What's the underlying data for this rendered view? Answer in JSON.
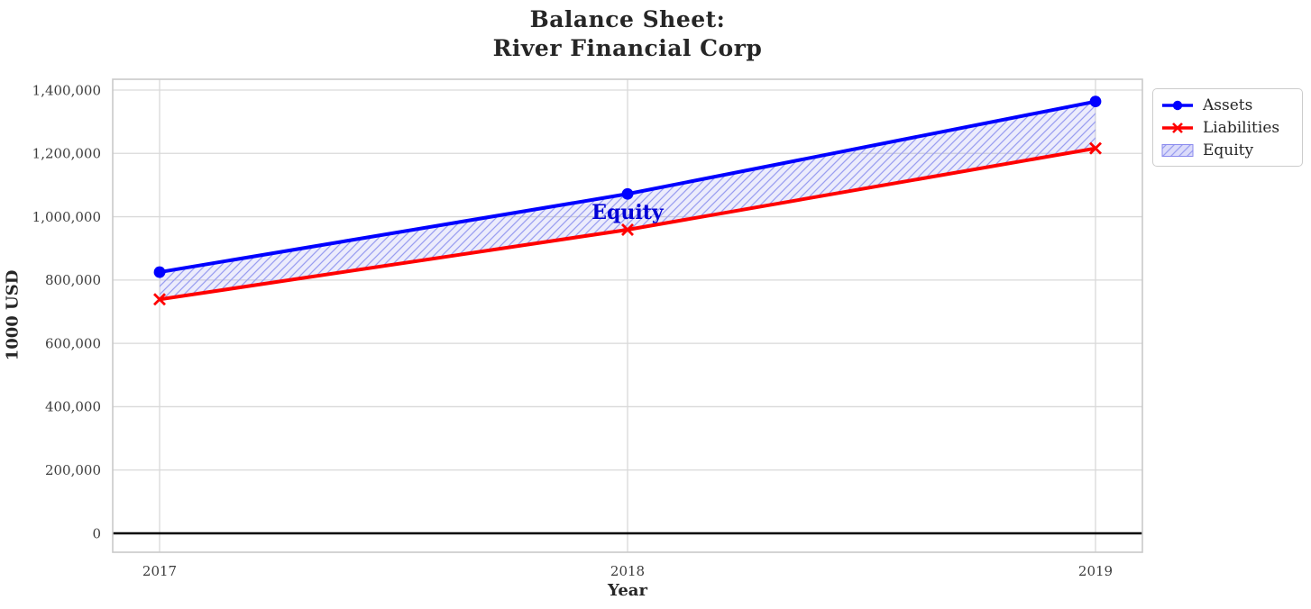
{
  "chart_data": {
    "type": "line",
    "title": "Balance Sheet: River Financial Corp",
    "title_lines": [
      "Balance Sheet:",
      "River Financial Corp"
    ],
    "xlabel": "Year",
    "ylabel": "1000 USD",
    "x": [
      2017,
      2018,
      2019
    ],
    "xtick_labels": [
      "2017",
      "2018",
      "2019"
    ],
    "series": [
      {
        "name": "Assets",
        "color": "#0000ff",
        "marker": "circle",
        "values": [
          825000,
          1072000,
          1364000
        ]
      },
      {
        "name": "Liabilities",
        "color": "#ff0000",
        "marker": "x",
        "values": [
          739000,
          959000,
          1216000
        ]
      }
    ],
    "fill_between": {
      "name": "Equity",
      "between": [
        "Assets",
        "Liabilities"
      ],
      "derived_values": [
        86000,
        113000,
        148000
      ],
      "facecolor": "#6e6eeb",
      "face_opacity": 0.13,
      "hatch": "/",
      "hatch_color": "#9a9ef0"
    },
    "annotation": {
      "text": "Equity",
      "x": 2018,
      "y": 1015500,
      "color": "#0000d6"
    },
    "yticks": [
      0,
      200000,
      400000,
      600000,
      800000,
      1000000,
      1200000,
      1400000
    ],
    "ytick_labels": [
      "0",
      "200,000",
      "400,000",
      "600,000",
      "800,000",
      "1,000,000",
      "1,200,000",
      "1,400,000"
    ],
    "ylim": [
      -60000,
      1434000
    ],
    "grid": true,
    "grid_color": "#d9d9d9",
    "spine_color": "#c9c9c9",
    "zero_line_color": "#000000",
    "legend": {
      "position": "upper-right-outside",
      "entries": [
        {
          "label": "Assets",
          "type": "line-circle",
          "color": "#0000ff"
        },
        {
          "label": "Liabilities",
          "type": "line-x",
          "color": "#ff0000"
        },
        {
          "label": "Equity",
          "type": "hatch-patch",
          "color": "#9a9ef0"
        }
      ]
    }
  }
}
